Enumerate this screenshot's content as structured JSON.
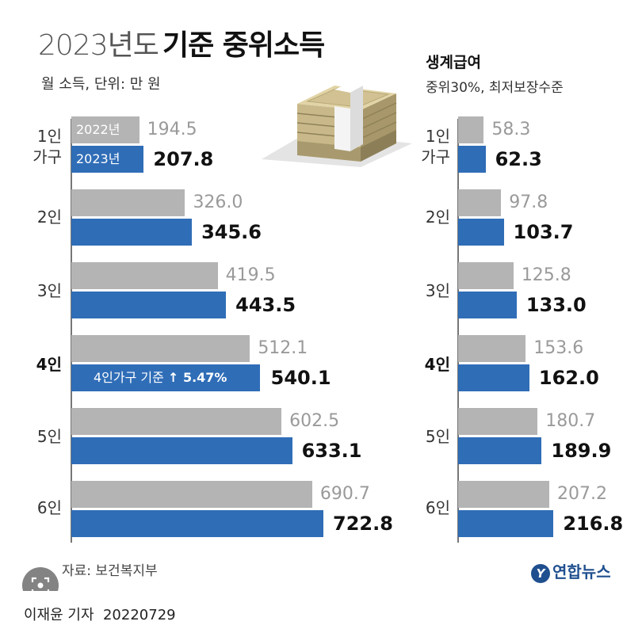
{
  "header": {
    "title_year": "2023년도",
    "title_main": "기준 중위소득",
    "subtitle": "월 소득, 단위: 만 원"
  },
  "chart_data": [
    {
      "type": "bar",
      "title": "2023년도 기준 중위소득",
      "subtitle": "월 소득, 단위: 만 원",
      "categories": [
        "1인 가구",
        "2인",
        "3인",
        "4인",
        "5인",
        "6인"
      ],
      "category_labels": [
        "1인\n가구",
        "2인",
        "3인",
        "4인",
        "5인",
        "6인"
      ],
      "series": [
        {
          "name": "2022년",
          "values": [
            194.5,
            326.0,
            419.5,
            512.1,
            602.5,
            690.7
          ],
          "color": "#b4b4b4"
        },
        {
          "name": "2023년",
          "values": [
            207.8,
            345.6,
            443.5,
            540.1,
            633.1,
            722.8
          ],
          "color": "#2f6db7"
        }
      ],
      "value_labels_2022": [
        "194.5",
        "326.0",
        "419.5",
        "512.1",
        "602.5",
        "690.7"
      ],
      "value_labels_2023": [
        "207.8",
        "345.6",
        "443.5",
        "540.1",
        "633.1",
        "722.8"
      ],
      "annotation": {
        "prefix": "4인가구 기준",
        "arrow": "↑",
        "value": "5.47%"
      },
      "xlim": [
        0,
        800
      ]
    },
    {
      "type": "bar",
      "title": "생계급여",
      "subtitle": "중위30%, 최저보장수준",
      "categories": [
        "1인 가구",
        "2인",
        "3인",
        "4인",
        "5인",
        "6인"
      ],
      "category_labels": [
        "1인\n가구",
        "2인",
        "3인",
        "4인",
        "5인",
        "6인"
      ],
      "series": [
        {
          "name": "2022년",
          "values": [
            58.3,
            97.8,
            125.8,
            153.6,
            180.7,
            207.2
          ],
          "color": "#b4b4b4"
        },
        {
          "name": "2023년",
          "values": [
            62.3,
            103.7,
            133.0,
            162.0,
            189.9,
            216.8
          ],
          "color": "#2f6db7"
        }
      ],
      "value_labels_2022": [
        "58.3",
        "97.8",
        "125.8",
        "153.6",
        "180.7",
        "207.2"
      ],
      "value_labels_2023": [
        "62.3",
        "103.7",
        "133.0",
        "162.0",
        "189.9",
        "216.8"
      ],
      "xlim": [
        0,
        265
      ]
    }
  ],
  "footer": {
    "source": "자료: 보건복지부",
    "logo": "연합뉴스",
    "reporter": "이재윤 기자",
    "date": "20220729"
  },
  "icons": {
    "logo_mark": "yonhap-logo-icon",
    "money": "money-stack-icon",
    "search": "visual-search-icon"
  }
}
